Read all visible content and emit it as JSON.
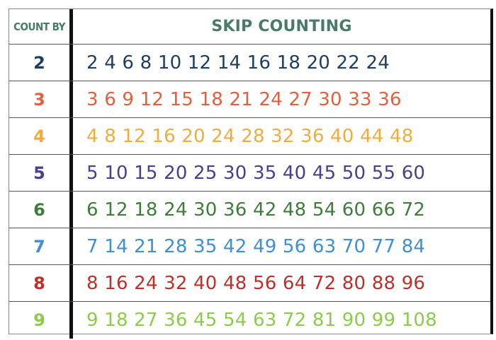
{
  "header": {
    "count_by": "COUNT BY",
    "title": "SKIP COUNTING"
  },
  "rows": [
    {
      "n": "2",
      "seq": "2 4 6 8 10 12 14 16 18 20 22 24",
      "color": "#1f3f5f"
    },
    {
      "n": "3",
      "seq": "3 6 9 12 15 18 21 24 27 30 33 36",
      "color": "#e0603f"
    },
    {
      "n": "4",
      "seq": "4 8 12 16 20 24 28 32 36 40 44 48",
      "color": "#f2ac3c"
    },
    {
      "n": "5",
      "seq": "5 10 15 20 25 30 35 40 45 50 55 60",
      "color": "#4b3d8f"
    },
    {
      "n": "6",
      "seq": "6 12 18 24 30 36 42 48 54 60 66 72",
      "color": "#3e7d3a"
    },
    {
      "n": "7",
      "seq": "7 14 21 28 35 42 49 56 63 70 77 84",
      "color": "#3f8fd6"
    },
    {
      "n": "8",
      "seq": "8 16 24 32 40 48 56 64 72 80 88 96",
      "color": "#c0302a"
    },
    {
      "n": "9",
      "seq": "9 18 27 36 45 54 63 72 81 90 99 108",
      "color": "#8ccc4a"
    }
  ]
}
